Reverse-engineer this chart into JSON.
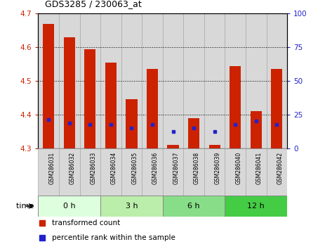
{
  "title": "GDS3285 / 230063_at",
  "samples": [
    "GSM286031",
    "GSM286032",
    "GSM286033",
    "GSM286034",
    "GSM286035",
    "GSM286036",
    "GSM286037",
    "GSM286038",
    "GSM286039",
    "GSM286040",
    "GSM286041",
    "GSM286042"
  ],
  "bar_tops": [
    4.67,
    4.63,
    4.595,
    4.555,
    4.445,
    4.535,
    4.31,
    4.39,
    4.31,
    4.545,
    4.41,
    4.535
  ],
  "bar_bottom": 4.3,
  "blue_y": [
    4.385,
    4.375,
    4.37,
    4.37,
    4.36,
    4.37,
    4.35,
    4.36,
    4.35,
    4.37,
    4.38,
    4.37
  ],
  "ylim_left": [
    4.3,
    4.7
  ],
  "ylim_right": [
    0,
    100
  ],
  "yticks_left": [
    4.3,
    4.4,
    4.5,
    4.6,
    4.7
  ],
  "yticks_right": [
    0,
    25,
    50,
    75,
    100
  ],
  "bar_color": "#cc2200",
  "blue_color": "#2222cc",
  "time_groups": [
    {
      "label": "0 h",
      "start": 0,
      "end": 3,
      "color": "#ddffdd"
    },
    {
      "label": "3 h",
      "start": 3,
      "end": 6,
      "color": "#bbeeaa"
    },
    {
      "label": "6 h",
      "start": 6,
      "end": 9,
      "color": "#88dd88"
    },
    {
      "label": "12 h",
      "start": 9,
      "end": 12,
      "color": "#44cc44"
    }
  ],
  "time_label": "time",
  "legend_bar_label": "transformed count",
  "legend_blue_label": "percentile rank within the sample",
  "bar_width": 0.55,
  "bg_color": "#ffffff",
  "tick_label_color_left": "#cc2200",
  "tick_label_color_right": "#2222cc",
  "col_bg_color": "#d8d8d8",
  "col_border_color": "#aaaaaa"
}
